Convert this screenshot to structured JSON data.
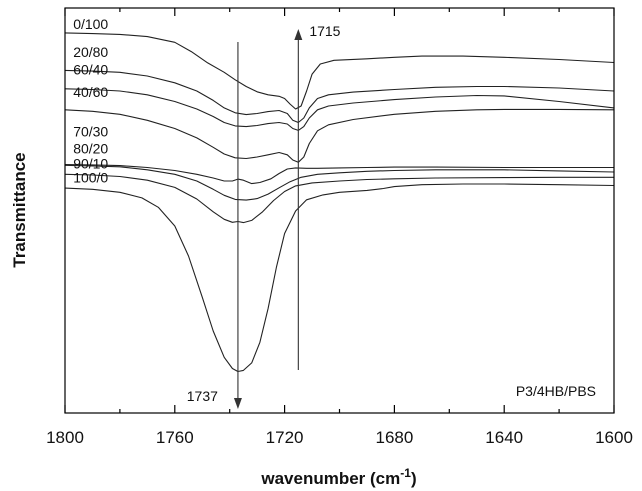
{
  "chart_data": {
    "type": "line",
    "title": "",
    "xlabel": "wavenumber (cm",
    "xlabel_sup": "-1",
    "xlabel_close": ")",
    "ylabel": "Transmittance",
    "xlim": [
      1800,
      1600
    ],
    "x_reversed": true,
    "ylim": [
      0,
      1
    ],
    "x_ticks": [
      1800,
      1760,
      1720,
      1680,
      1640,
      1600
    ],
    "y_ticks_shown": false,
    "grid": false,
    "corner_label": "P3/4HB/PBS",
    "markers": [
      {
        "label": "1737",
        "x": 1737,
        "direction": "down"
      },
      {
        "label": "1715",
        "x": 1715,
        "direction": "up"
      }
    ],
    "series": [
      {
        "name": "0/100",
        "label_x": 1797,
        "label_y": 0.955,
        "points": [
          [
            1800,
            0.955
          ],
          [
            1790,
            0.953
          ],
          [
            1780,
            0.951
          ],
          [
            1770,
            0.945
          ],
          [
            1760,
            0.93
          ],
          [
            1754,
            0.905
          ],
          [
            1748,
            0.875
          ],
          [
            1742,
            0.85
          ],
          [
            1738,
            0.83
          ],
          [
            1734,
            0.812
          ],
          [
            1730,
            0.798
          ],
          [
            1726,
            0.79
          ],
          [
            1722,
            0.786
          ],
          [
            1720,
            0.78
          ],
          [
            1718,
            0.765
          ],
          [
            1716,
            0.752
          ],
          [
            1714,
            0.76
          ],
          [
            1712,
            0.8
          ],
          [
            1710,
            0.845
          ],
          [
            1707,
            0.872
          ],
          [
            1702,
            0.882
          ],
          [
            1690,
            0.886
          ],
          [
            1680,
            0.89
          ],
          [
            1670,
            0.893
          ],
          [
            1655,
            0.893
          ],
          [
            1640,
            0.89
          ],
          [
            1620,
            0.884
          ],
          [
            1600,
            0.876
          ]
        ]
      },
      {
        "name": "20/80",
        "label_x": 1797,
        "label_y": 0.88,
        "points": [
          [
            1800,
            0.855
          ],
          [
            1790,
            0.853
          ],
          [
            1780,
            0.85
          ],
          [
            1770,
            0.84
          ],
          [
            1760,
            0.822
          ],
          [
            1752,
            0.8
          ],
          [
            1746,
            0.775
          ],
          [
            1742,
            0.755
          ],
          [
            1738,
            0.742
          ],
          [
            1734,
            0.737
          ],
          [
            1730,
            0.74
          ],
          [
            1726,
            0.745
          ],
          [
            1722,
            0.748
          ],
          [
            1719,
            0.74
          ],
          [
            1717,
            0.722
          ],
          [
            1715,
            0.716
          ],
          [
            1713,
            0.728
          ],
          [
            1711,
            0.755
          ],
          [
            1708,
            0.78
          ],
          [
            1704,
            0.79
          ],
          [
            1695,
            0.797
          ],
          [
            1680,
            0.804
          ],
          [
            1665,
            0.81
          ],
          [
            1650,
            0.812
          ],
          [
            1640,
            0.812
          ],
          [
            1620,
            0.808
          ],
          [
            1600,
            0.8
          ]
        ]
      },
      {
        "name": "60/40",
        "label_x": 1797,
        "label_y": 0.833,
        "points": [
          [
            1800,
            0.806
          ],
          [
            1790,
            0.804
          ],
          [
            1780,
            0.8
          ],
          [
            1770,
            0.79
          ],
          [
            1760,
            0.772
          ],
          [
            1752,
            0.752
          ],
          [
            1746,
            0.732
          ],
          [
            1742,
            0.716
          ],
          [
            1738,
            0.707
          ],
          [
            1734,
            0.705
          ],
          [
            1730,
            0.708
          ],
          [
            1726,
            0.713
          ],
          [
            1722,
            0.716
          ],
          [
            1719,
            0.712
          ],
          [
            1717,
            0.7
          ],
          [
            1715,
            0.695
          ],
          [
            1713,
            0.705
          ],
          [
            1711,
            0.728
          ],
          [
            1708,
            0.75
          ],
          [
            1704,
            0.76
          ],
          [
            1695,
            0.768
          ],
          [
            1680,
            0.777
          ],
          [
            1665,
            0.784
          ],
          [
            1650,
            0.788
          ],
          [
            1640,
            0.787
          ],
          [
            1620,
            0.772
          ],
          [
            1600,
            0.755
          ]
        ]
      },
      {
        "name": "40/60",
        "label_x": 1797,
        "label_y": 0.774,
        "points": [
          [
            1800,
            0.75
          ],
          [
            1790,
            0.746
          ],
          [
            1780,
            0.738
          ],
          [
            1770,
            0.722
          ],
          [
            1760,
            0.7
          ],
          [
            1752,
            0.675
          ],
          [
            1746,
            0.65
          ],
          [
            1742,
            0.632
          ],
          [
            1738,
            0.622
          ],
          [
            1734,
            0.62
          ],
          [
            1730,
            0.624
          ],
          [
            1726,
            0.63
          ],
          [
            1722,
            0.636
          ],
          [
            1719,
            0.63
          ],
          [
            1717,
            0.616
          ],
          [
            1715,
            0.61
          ],
          [
            1713,
            0.624
          ],
          [
            1711,
            0.66
          ],
          [
            1708,
            0.694
          ],
          [
            1704,
            0.71
          ],
          [
            1695,
            0.724
          ],
          [
            1680,
            0.738
          ],
          [
            1665,
            0.746
          ],
          [
            1650,
            0.75
          ],
          [
            1640,
            0.751
          ],
          [
            1620,
            0.751
          ],
          [
            1600,
            0.75
          ]
        ]
      },
      {
        "name": "70/30",
        "label_x": 1797,
        "label_y": 0.668,
        "points": [
          [
            1800,
            0.604
          ],
          [
            1790,
            0.603
          ],
          [
            1780,
            0.601
          ],
          [
            1770,
            0.596
          ],
          [
            1760,
            0.588
          ],
          [
            1752,
            0.578
          ],
          [
            1746,
            0.568
          ],
          [
            1742,
            0.56
          ],
          [
            1739,
            0.56
          ],
          [
            1737,
            0.565
          ],
          [
            1735,
            0.562
          ],
          [
            1732,
            0.553
          ],
          [
            1729,
            0.556
          ],
          [
            1725,
            0.566
          ],
          [
            1722,
            0.58
          ],
          [
            1719,
            0.592
          ],
          [
            1716,
            0.595
          ],
          [
            1712,
            0.594
          ],
          [
            1708,
            0.594
          ],
          [
            1700,
            0.595
          ],
          [
            1690,
            0.596
          ],
          [
            1680,
            0.597
          ],
          [
            1665,
            0.597
          ],
          [
            1640,
            0.596
          ],
          [
            1620,
            0.596
          ],
          [
            1600,
            0.596
          ]
        ]
      },
      {
        "name": "80/20",
        "label_x": 1797,
        "label_y": 0.623,
        "points": [
          [
            1800,
            0.602
          ],
          [
            1790,
            0.6
          ],
          [
            1780,
            0.598
          ],
          [
            1770,
            0.59
          ],
          [
            1760,
            0.578
          ],
          [
            1752,
            0.56
          ],
          [
            1746,
            0.538
          ],
          [
            1742,
            0.522
          ],
          [
            1738,
            0.511
          ],
          [
            1734,
            0.509
          ],
          [
            1730,
            0.513
          ],
          [
            1726,
            0.525
          ],
          [
            1722,
            0.542
          ],
          [
            1718,
            0.558
          ],
          [
            1714,
            0.57
          ],
          [
            1708,
            0.578
          ],
          [
            1700,
            0.582
          ],
          [
            1690,
            0.586
          ],
          [
            1680,
            0.588
          ],
          [
            1665,
            0.59
          ],
          [
            1640,
            0.59
          ],
          [
            1620,
            0.587
          ],
          [
            1600,
            0.584
          ]
        ]
      },
      {
        "name": "90/10",
        "label_x": 1797,
        "label_y": 0.583,
        "points": [
          [
            1800,
            0.578
          ],
          [
            1790,
            0.576
          ],
          [
            1780,
            0.572
          ],
          [
            1770,
            0.562
          ],
          [
            1760,
            0.543
          ],
          [
            1752,
            0.512
          ],
          [
            1746,
            0.478
          ],
          [
            1742,
            0.458
          ],
          [
            1739,
            0.45
          ],
          [
            1737,
            0.452
          ],
          [
            1735,
            0.449
          ],
          [
            1732,
            0.455
          ],
          [
            1728,
            0.478
          ],
          [
            1724,
            0.508
          ],
          [
            1720,
            0.532
          ],
          [
            1716,
            0.547
          ],
          [
            1710,
            0.555
          ],
          [
            1700,
            0.56
          ],
          [
            1690,
            0.564
          ],
          [
            1680,
            0.566
          ],
          [
            1665,
            0.568
          ],
          [
            1640,
            0.569
          ],
          [
            1620,
            0.57
          ],
          [
            1600,
            0.57
          ]
        ]
      },
      {
        "name": "100/0",
        "label_x": 1797,
        "label_y": 0.545,
        "points": [
          [
            1800,
            0.541
          ],
          [
            1790,
            0.538
          ],
          [
            1780,
            0.53
          ],
          [
            1772,
            0.515
          ],
          [
            1766,
            0.49
          ],
          [
            1760,
            0.44
          ],
          [
            1755,
            0.36
          ],
          [
            1750,
            0.25
          ],
          [
            1746,
            0.16
          ],
          [
            1742,
            0.09
          ],
          [
            1739,
            0.06
          ],
          [
            1737,
            0.052
          ],
          [
            1735,
            0.055
          ],
          [
            1732,
            0.075
          ],
          [
            1729,
            0.13
          ],
          [
            1726,
            0.22
          ],
          [
            1723,
            0.33
          ],
          [
            1720,
            0.42
          ],
          [
            1716,
            0.48
          ],
          [
            1712,
            0.51
          ],
          [
            1706,
            0.523
          ],
          [
            1700,
            0.53
          ],
          [
            1690,
            0.535
          ],
          [
            1684,
            0.54
          ],
          [
            1680,
            0.545
          ],
          [
            1670,
            0.55
          ],
          [
            1655,
            0.552
          ],
          [
            1640,
            0.552
          ],
          [
            1620,
            0.55
          ],
          [
            1600,
            0.548
          ]
        ]
      }
    ]
  }
}
